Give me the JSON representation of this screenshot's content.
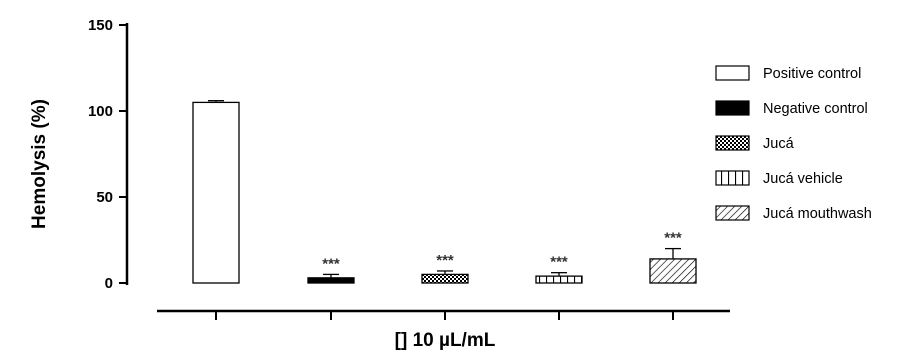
{
  "chart_data": {
    "type": "bar",
    "xlabel": "[] 10 µL/mL",
    "ylabel": "Hemolysis (%)",
    "ylim": [
      0,
      150
    ],
    "yticks": [
      "0",
      "50",
      "100",
      "150"
    ],
    "grid": false,
    "legend_position": "right",
    "series": [
      {
        "name": "Positive control",
        "value": 105,
        "error": 1,
        "annotation": "",
        "pattern": "empty"
      },
      {
        "name": "Negative control",
        "value": 3,
        "error": 2,
        "annotation": "***",
        "pattern": "solid"
      },
      {
        "name": "Jucá",
        "value": 5,
        "error": 2,
        "annotation": "***",
        "pattern": "checker"
      },
      {
        "name": "Jucá vehicle",
        "value": 4,
        "error": 2,
        "annotation": "***",
        "pattern": "vertical"
      },
      {
        "name": "Jucá mouthwash",
        "value": 14,
        "error": 6,
        "annotation": "***",
        "pattern": "diagonal"
      }
    ]
  }
}
